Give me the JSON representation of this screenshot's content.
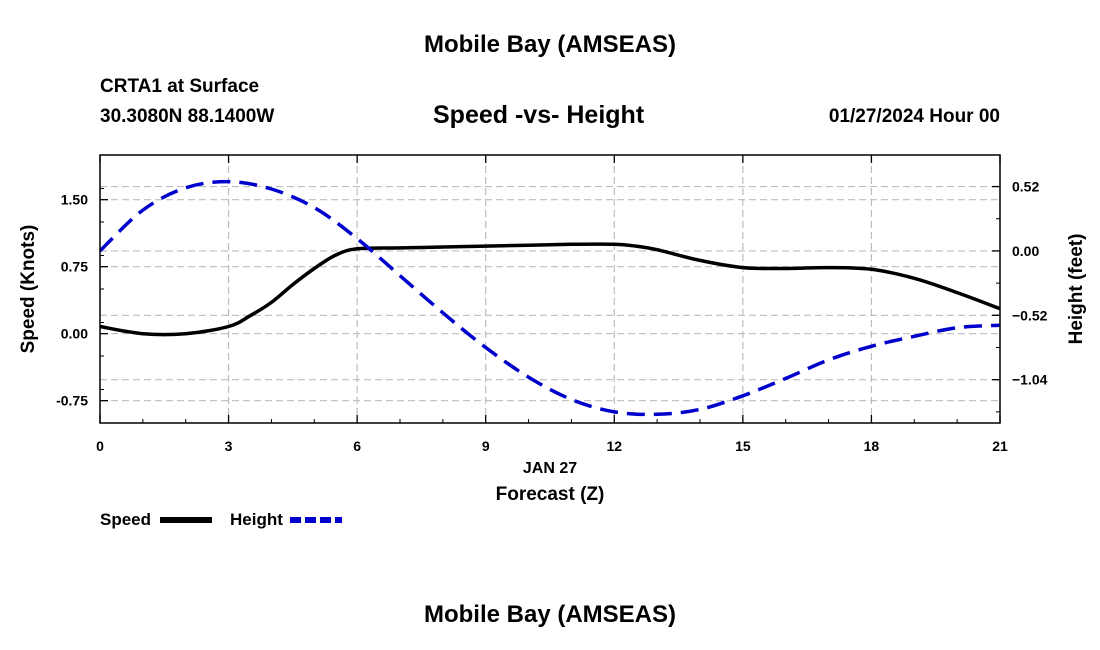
{
  "header": {
    "title": "Mobile Bay (AMSEAS)",
    "station": "CRTA1 at Surface",
    "coords": "30.3080N  88.1400W",
    "subtitle": "Speed -vs- Height",
    "datetime": "01/27/2024 Hour 00"
  },
  "footer": {
    "title": "Mobile Bay (AMSEAS)"
  },
  "legend": {
    "speed_label": "Speed",
    "height_label": "Height"
  },
  "chart_data": {
    "type": "line",
    "title": "Speed -vs- Height",
    "xlabel": "Forecast (Z)",
    "x_date_label": "JAN 27",
    "ylabel": "Speed (Knots)",
    "y2label": "Height (feet)",
    "xlim": [
      0,
      21
    ],
    "ylim": [
      -1.0,
      2.0
    ],
    "y2lim": [
      -1.39,
      0.775
    ],
    "xticks": [
      0,
      3,
      6,
      9,
      12,
      15,
      18,
      21
    ],
    "xtick_labels": [
      "0",
      "3",
      "6",
      "9",
      "12",
      "15",
      "18",
      "21"
    ],
    "yticks": [
      -0.75,
      0.0,
      0.75,
      1.5
    ],
    "ytick_labels": [
      "-0.75",
      "0.00",
      "0.75",
      "1.50"
    ],
    "y2ticks": [
      -1.04,
      -0.52,
      0.0,
      0.52
    ],
    "y2tick_labels": [
      "−1.04",
      "−0.52",
      "0.00",
      "0.52"
    ],
    "grid": true,
    "series": [
      {
        "name": "Speed",
        "axis": "left",
        "color": "#000000",
        "style": "solid",
        "x": [
          0,
          1,
          2,
          3,
          3.5,
          4,
          4.5,
          5,
          5.5,
          6,
          7,
          8,
          9,
          10,
          11,
          12,
          12.5,
          13,
          14,
          15,
          16,
          17,
          18,
          19,
          20,
          21
        ],
        "values": [
          0.08,
          0.0,
          0.0,
          0.08,
          0.2,
          0.35,
          0.55,
          0.73,
          0.88,
          0.95,
          0.96,
          0.97,
          0.98,
          0.99,
          1.0,
          1.0,
          0.98,
          0.94,
          0.82,
          0.74,
          0.73,
          0.74,
          0.72,
          0.62,
          0.46,
          0.28
        ]
      },
      {
        "name": "Height",
        "axis": "right",
        "color": "#0000cc",
        "style": "dashed",
        "x": [
          0,
          1,
          2,
          3,
          4,
          5,
          6,
          7,
          8,
          9,
          10,
          11,
          12,
          13,
          14,
          15,
          16,
          17,
          18,
          19,
          20,
          21
        ],
        "values": [
          0.0,
          0.33,
          0.51,
          0.56,
          0.5,
          0.35,
          0.1,
          -0.2,
          -0.5,
          -0.78,
          -1.02,
          -1.2,
          -1.3,
          -1.32,
          -1.28,
          -1.17,
          -1.03,
          -0.88,
          -0.77,
          -0.69,
          -0.62,
          -0.6
        ]
      }
    ]
  }
}
